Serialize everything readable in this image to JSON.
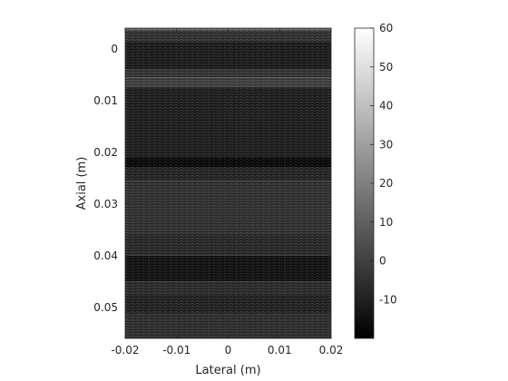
{
  "chart_data": {
    "type": "heatmap",
    "title": "",
    "xlabel": "Lateral (m)",
    "ylabel": "Axial (m)",
    "xlim": [
      -0.02,
      0.02
    ],
    "ylim": [
      -0.004,
      0.056
    ],
    "y_reversed": true,
    "x_ticks": [
      {
        "value": -0.02,
        "label": "-0.02"
      },
      {
        "value": -0.01,
        "label": "-0.01"
      },
      {
        "value": 0,
        "label": "0"
      },
      {
        "value": 0.01,
        "label": "0.01"
      },
      {
        "value": 0.02,
        "label": "0.02"
      }
    ],
    "y_ticks": [
      {
        "value": 0,
        "label": "0"
      },
      {
        "value": 0.01,
        "label": "0.01"
      },
      {
        "value": 0.02,
        "label": "0.02"
      },
      {
        "value": 0.03,
        "label": "0.03"
      },
      {
        "value": 0.04,
        "label": "0.04"
      },
      {
        "value": 0.05,
        "label": "0.05"
      }
    ],
    "colormap": "gray",
    "clim": [
      -20,
      60
    ],
    "colorbar_ticks": [
      {
        "value": 60,
        "label": "60"
      },
      {
        "value": 50,
        "label": "50"
      },
      {
        "value": 40,
        "label": "40"
      },
      {
        "value": 30,
        "label": "30"
      },
      {
        "value": 20,
        "label": "20"
      },
      {
        "value": 10,
        "label": "10"
      },
      {
        "value": 0,
        "label": "0"
      },
      {
        "value": -10,
        "label": "-10"
      }
    ],
    "intensity_bands": [
      {
        "axial_start": -0.004,
        "axial_end": -0.0035,
        "value": 12
      },
      {
        "axial_start": -0.0035,
        "axial_end": -0.0015,
        "value": -3
      },
      {
        "axial_start": -0.0015,
        "axial_end": 0.004,
        "value": -10
      },
      {
        "axial_start": 0.004,
        "axial_end": 0.0055,
        "value": -2
      },
      {
        "axial_start": 0.0055,
        "axial_end": 0.0075,
        "value": 2
      },
      {
        "axial_start": 0.0075,
        "axial_end": 0.021,
        "value": -9
      },
      {
        "axial_start": 0.021,
        "axial_end": 0.023,
        "value": -16
      },
      {
        "axial_start": 0.023,
        "axial_end": 0.0255,
        "value": -7
      },
      {
        "axial_start": 0.0255,
        "axial_end": 0.036,
        "value": -3
      },
      {
        "axial_start": 0.036,
        "axial_end": 0.04,
        "value": -6
      },
      {
        "axial_start": 0.04,
        "axial_end": 0.045,
        "value": -13
      },
      {
        "axial_start": 0.045,
        "axial_end": 0.0475,
        "value": -5
      },
      {
        "axial_start": 0.0475,
        "axial_end": 0.051,
        "value": -8
      },
      {
        "axial_start": 0.051,
        "axial_end": 0.056,
        "value": -4
      }
    ],
    "grid": false,
    "colorbar": "right"
  }
}
